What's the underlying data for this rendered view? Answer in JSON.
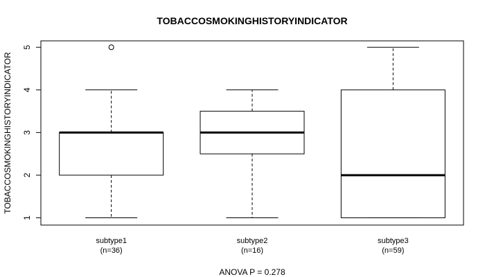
{
  "chart_data": {
    "type": "boxplot",
    "title": "TOBACCOSMOKINGHISTORYINDICATOR",
    "xlabel": "",
    "ylabel": "TOBACCOSMOKINGHISTORYINDICATOR",
    "ylim": [
      0.83,
      5.15
    ],
    "yticks": [
      "1",
      "2",
      "3",
      "4",
      "5"
    ],
    "groups": [
      {
        "name": "subtype1",
        "n_label": "(n=36)",
        "whisker_low": 1,
        "q1": 2,
        "median": 3,
        "q3": 3,
        "whisker_high": 4,
        "outliers": [
          5
        ]
      },
      {
        "name": "subtype2",
        "n_label": "(n=16)",
        "whisker_low": 1,
        "q1": 2.5,
        "median": 3,
        "q3": 3.5,
        "whisker_high": 4,
        "outliers": []
      },
      {
        "name": "subtype3",
        "n_label": "(n=59)",
        "whisker_low": 1,
        "q1": 1,
        "median": 2,
        "q3": 4,
        "whisker_high": 5,
        "outliers": []
      }
    ],
    "footnote": "ANOVA P = 0.278",
    "colors": {
      "box_line": "#000000",
      "background": "#ffffff"
    }
  }
}
